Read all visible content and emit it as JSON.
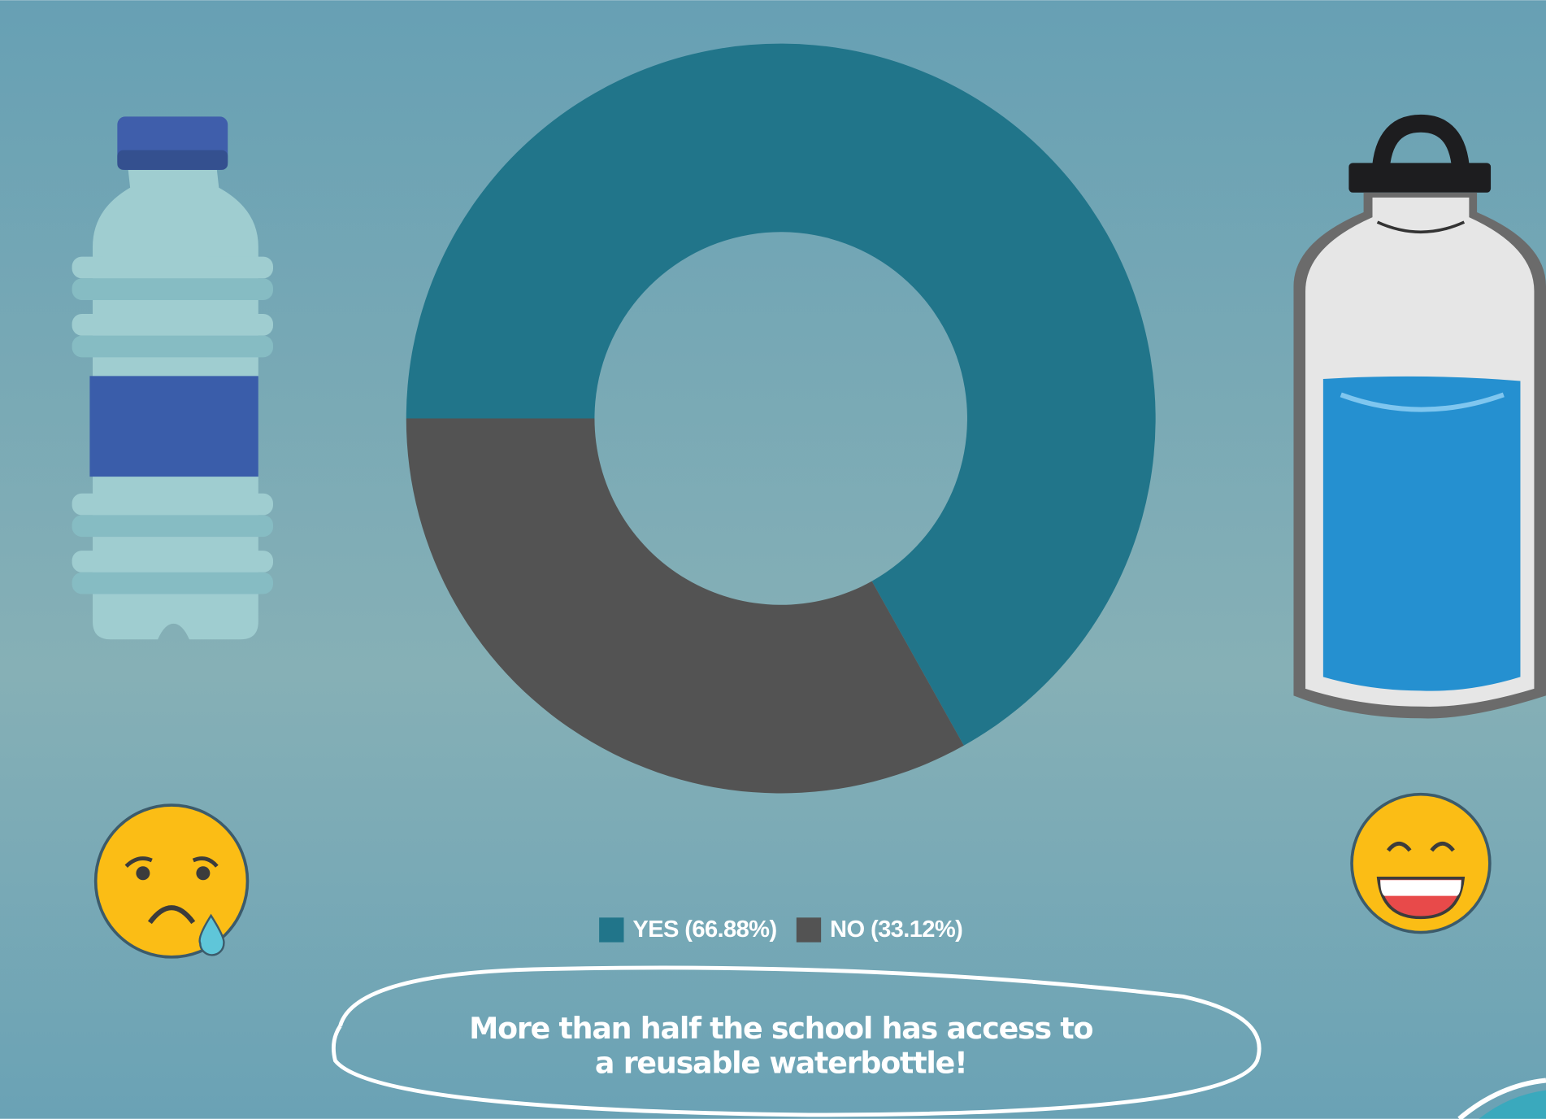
{
  "chart_data": {
    "type": "donut",
    "categories": [
      "YES (66.88%)",
      "NO (33.12%)"
    ],
    "values": [
      66.88,
      33.12
    ],
    "colors": [
      "#21758a",
      "#535353"
    ],
    "annotation": [
      "More than half the school has access to",
      "a reusable waterbottle!"
    ]
  }
}
